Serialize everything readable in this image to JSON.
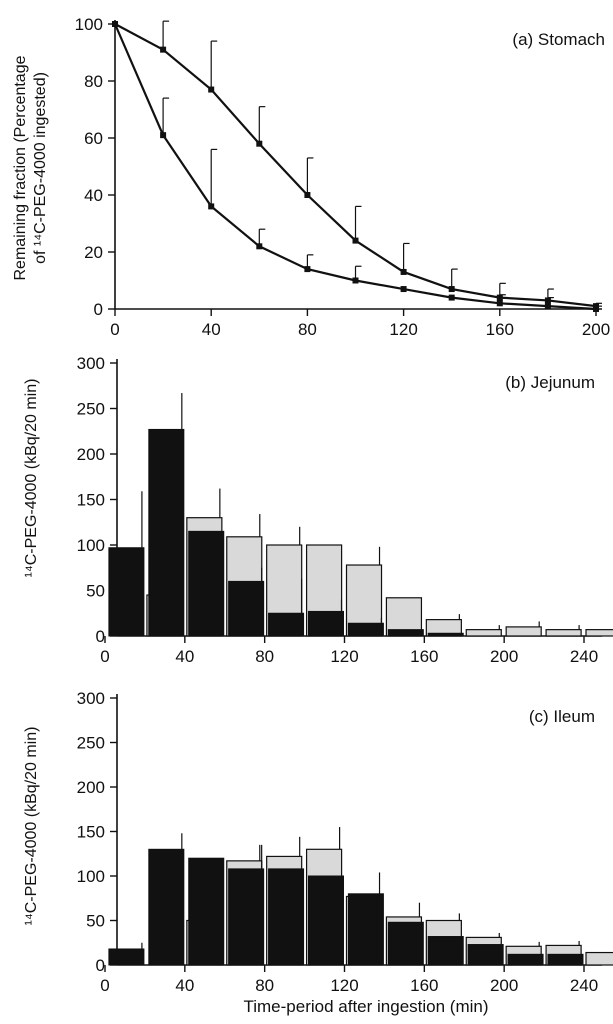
{
  "chart_data": [
    {
      "type": "line",
      "title": "(a) Stomach",
      "ylabel_line1": "Remaining fraction (Percentage",
      "ylabel_line2": "of ¹⁴C-PEG-4000 ingested)",
      "xlabel": "",
      "xlim": [
        0,
        200
      ],
      "ylim": [
        0,
        100
      ],
      "xticks": [
        0,
        40,
        80,
        120,
        160,
        200
      ],
      "yticks": [
        0,
        20,
        40,
        60,
        80,
        100
      ],
      "x": [
        0,
        20,
        40,
        60,
        80,
        100,
        120,
        140,
        160,
        180,
        200
      ],
      "series": [
        {
          "values": [
            100,
            91,
            77,
            58,
            40,
            24,
            13,
            7,
            4,
            3,
            1
          ],
          "err": [
            0,
            10,
            17,
            13,
            13,
            12,
            10,
            7,
            5,
            4,
            1
          ]
        },
        {
          "values": [
            100,
            61,
            36,
            22,
            14,
            10,
            7,
            4,
            2,
            1,
            0
          ],
          "err": [
            0,
            13,
            20,
            6,
            5,
            5,
            0,
            0,
            3,
            3,
            1
          ]
        }
      ]
    },
    {
      "type": "bar",
      "title": "(b) Jejunum",
      "ylabel": "¹⁴C-PEG-4000 (kBq/20 min)",
      "xlabel": "",
      "xlim": [
        0,
        240
      ],
      "ylim": [
        0,
        300
      ],
      "xticks": [
        0,
        40,
        80,
        120,
        160,
        200,
        240
      ],
      "yticks": [
        0,
        50,
        100,
        150,
        200,
        250,
        300
      ],
      "x": [
        20,
        40,
        60,
        80,
        100,
        120,
        140,
        160,
        180,
        200,
        220,
        240
      ],
      "series": [
        {
          "fill": "#111111",
          "values": [
            97,
            227,
            115,
            60,
            25,
            27,
            14,
            7,
            3,
            0,
            0,
            0
          ],
          "err": [
            62,
            40,
            0,
            15,
            38,
            13,
            6,
            0,
            0,
            0,
            0,
            0
          ]
        },
        {
          "fill": "#d9d9d9",
          "values": [
            45,
            130,
            109,
            100,
            100,
            78,
            42,
            18,
            7,
            10,
            7,
            7
          ],
          "err": [
            45,
            32,
            25,
            20,
            0,
            20,
            0,
            6,
            5,
            6,
            5,
            0
          ]
        }
      ]
    },
    {
      "type": "bar",
      "title": "(c) Ileum",
      "ylabel": "¹⁴C-PEG-4000 (kBq/20 min)",
      "xlabel": "Time-period after ingestion (min)",
      "xlim": [
        0,
        240
      ],
      "ylim": [
        0,
        300
      ],
      "xticks": [
        0,
        40,
        80,
        120,
        160,
        200,
        240
      ],
      "yticks": [
        0,
        50,
        100,
        150,
        200,
        250,
        300
      ],
      "x": [
        20,
        40,
        60,
        80,
        100,
        120,
        140,
        160,
        180,
        200,
        220,
        240
      ],
      "series": [
        {
          "fill": "#111111",
          "values": [
            18,
            130,
            120,
            108,
            108,
            100,
            80,
            48,
            32,
            23,
            12,
            12
          ],
          "err": [
            7,
            18,
            0,
            27,
            0,
            0,
            0,
            0,
            0,
            0,
            0,
            0
          ],
          "zero_val": 0
        },
        {
          "fill": "#d9d9d9",
          "values": [
            0,
            50,
            117,
            122,
            130,
            77,
            54,
            50,
            31,
            21,
            22,
            14
          ],
          "err": [
            0,
            43,
            18,
            22,
            25,
            27,
            16,
            8,
            5,
            5,
            5,
            4
          ]
        }
      ]
    }
  ]
}
